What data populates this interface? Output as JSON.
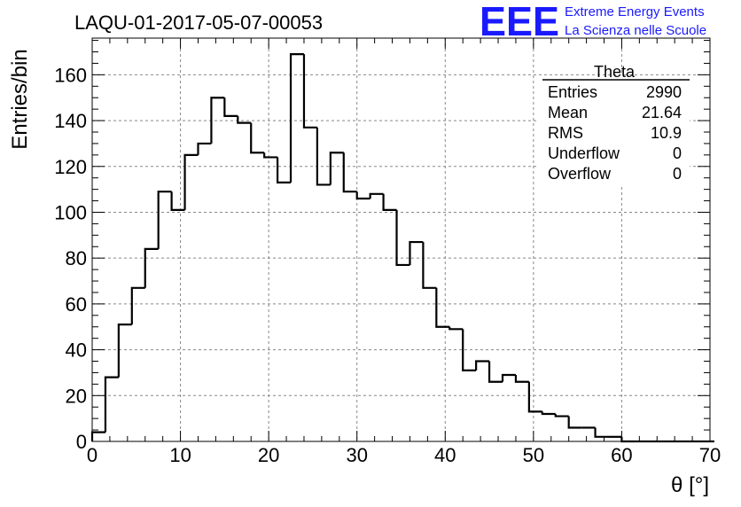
{
  "header": {
    "run_id": "LAQU-01-2017-05-07-00053",
    "logo_text": "EEE",
    "logo_line1": "Extreme Energy Events",
    "logo_line2": "La Scienza nelle Scuole"
  },
  "colors": {
    "logo_blue": "#1a1aff",
    "histogram_line": "#000000",
    "grid": "#888888"
  },
  "stats": {
    "title": "Theta",
    "rows": [
      {
        "label": "Entries",
        "value": "2990"
      },
      {
        "label": "Mean",
        "value": "21.64"
      },
      {
        "label": "RMS",
        "value": "10.9"
      },
      {
        "label": "Underflow",
        "value": "0"
      },
      {
        "label": "Overflow",
        "value": "0"
      }
    ]
  },
  "chart_data": {
    "type": "bar",
    "histogram": true,
    "title": "LAQU-01-2017-05-07-00053",
    "xlabel": "θ [°]",
    "ylabel": "Entries/bin",
    "xlim": [
      0,
      70
    ],
    "ylim": [
      0,
      176
    ],
    "bin_width": 1.5,
    "x_ticks": [
      0,
      10,
      20,
      30,
      40,
      50,
      60,
      70
    ],
    "y_ticks": [
      0,
      20,
      40,
      60,
      80,
      100,
      120,
      140,
      160
    ],
    "grid": true,
    "values": [
      4,
      28,
      51,
      67,
      84,
      109,
      101,
      125,
      130,
      150,
      142,
      139,
      126,
      124,
      113,
      169,
      137,
      112,
      126,
      109,
      106,
      108,
      101,
      77,
      87,
      67,
      50,
      49,
      31,
      35,
      26,
      29,
      26,
      13,
      12,
      11,
      6,
      6,
      2,
      2,
      0,
      0,
      0,
      0,
      0,
      0,
      0
    ]
  }
}
